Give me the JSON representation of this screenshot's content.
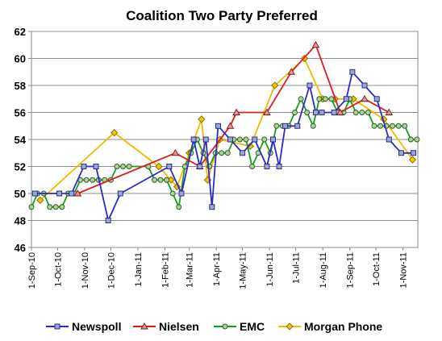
{
  "chart_data": {
    "type": "line",
    "title": "Coalition Two Party Preferred",
    "xlabel": "",
    "ylabel": "",
    "ylim": [
      46,
      62
    ],
    "yticks": [
      46,
      48,
      50,
      52,
      54,
      56,
      58,
      60,
      62
    ],
    "xlim": [
      "2010-09-01",
      "2011-11-18"
    ],
    "xticks": [
      "1-Sep-10",
      "1-Oct-10",
      "1-Nov-10",
      "1-Dec-10",
      "1-Jan-11",
      "1-Feb-11",
      "1-Mar-11",
      "1-Apr-11",
      "1-May-11",
      "1-Jun-11",
      "1-Jul-11",
      "1-Aug-11",
      "1-Sep-11",
      "1-Oct-11",
      "1-Nov-11"
    ],
    "xtick_dates": [
      "2010-09-01",
      "2010-10-01",
      "2010-11-01",
      "2010-12-01",
      "2011-01-01",
      "2011-02-01",
      "2011-03-01",
      "2011-04-01",
      "2011-05-01",
      "2011-06-01",
      "2011-07-01",
      "2011-08-01",
      "2011-09-01",
      "2011-10-01",
      "2011-11-01"
    ],
    "grid": "horizontal",
    "legend_position": "bottom",
    "series": [
      {
        "name": "Newspoll",
        "color": "#2b2bcc",
        "marker": "square",
        "x": [
          "2010-09-05",
          "2010-10-03",
          "2010-10-17",
          "2010-10-31",
          "2010-11-14",
          "2010-11-28",
          "2010-12-12",
          "2011-02-06",
          "2011-02-20",
          "2011-03-06",
          "2011-03-13",
          "2011-03-20",
          "2011-03-27",
          "2011-04-03",
          "2011-04-17",
          "2011-05-01",
          "2011-05-15",
          "2011-05-29",
          "2011-06-05",
          "2011-06-12",
          "2011-06-19",
          "2011-07-03",
          "2011-07-17",
          "2011-07-24",
          "2011-07-31",
          "2011-08-14",
          "2011-08-28",
          "2011-09-04",
          "2011-09-18",
          "2011-10-02",
          "2011-10-16",
          "2011-10-30",
          "2011-11-13"
        ],
        "y": [
          50,
          50,
          50,
          52,
          52,
          48,
          50,
          52,
          50,
          54,
          52,
          54,
          49,
          55,
          54,
          53,
          54,
          52,
          54,
          52,
          55,
          55,
          58,
          56,
          56,
          56,
          57,
          59,
          58,
          57,
          54,
          53,
          53
        ]
      },
      {
        "name": "Nielsen",
        "color": "#e01b1b",
        "marker": "triangle",
        "x": [
          "2010-10-24",
          "2011-02-13",
          "2011-03-13",
          "2011-04-17",
          "2011-04-24",
          "2011-05-29",
          "2011-06-26",
          "2011-07-24",
          "2011-08-21",
          "2011-09-18",
          "2011-10-16"
        ],
        "y": [
          50,
          53,
          52,
          55,
          56,
          56,
          59,
          61,
          56,
          57,
          56
        ]
      },
      {
        "name": "EMC",
        "color": "#15a01b",
        "marker": "circle",
        "x": [
          "2010-09-01",
          "2010-09-08",
          "2010-09-15",
          "2010-09-22",
          "2010-09-29",
          "2010-10-06",
          "2010-10-13",
          "2010-10-20",
          "2010-10-27",
          "2010-11-03",
          "2010-11-10",
          "2010-11-17",
          "2010-11-24",
          "2010-12-01",
          "2010-12-08",
          "2010-12-15",
          "2010-12-22",
          "2011-01-13",
          "2011-01-20",
          "2011-01-27",
          "2011-02-03",
          "2011-02-10",
          "2011-02-17",
          "2011-02-24",
          "2011-03-03",
          "2011-03-10",
          "2011-03-17",
          "2011-03-24",
          "2011-03-31",
          "2011-04-07",
          "2011-04-14",
          "2011-04-21",
          "2011-04-28",
          "2011-05-05",
          "2011-05-12",
          "2011-05-19",
          "2011-05-26",
          "2011-06-02",
          "2011-06-09",
          "2011-06-16",
          "2011-06-23",
          "2011-06-30",
          "2011-07-07",
          "2011-07-14",
          "2011-07-21",
          "2011-07-28",
          "2011-08-04",
          "2011-08-11",
          "2011-08-18",
          "2011-08-25",
          "2011-09-01",
          "2011-09-08",
          "2011-09-15",
          "2011-09-22",
          "2011-09-29",
          "2011-10-06",
          "2011-10-13",
          "2011-10-20",
          "2011-10-27",
          "2011-11-03",
          "2011-11-10",
          "2011-11-17"
        ],
        "y": [
          49,
          50,
          50,
          49,
          49,
          49,
          50,
          50,
          51,
          51,
          51,
          51,
          51,
          51,
          52,
          52,
          52,
          52,
          51,
          51,
          51,
          50,
          49,
          52,
          53,
          54,
          53,
          52,
          53,
          53,
          53,
          54,
          54,
          54,
          52,
          53,
          54,
          53,
          55,
          55,
          55,
          56,
          57,
          56,
          55,
          57,
          57,
          57,
          56,
          56,
          57,
          56,
          56,
          56,
          55,
          55,
          55,
          55,
          55,
          55,
          54,
          54
        ]
      },
      {
        "name": "Morgan Phone",
        "color": "#f5b800",
        "marker": "diamond",
        "x": [
          "2010-09-11",
          "2010-12-05",
          "2011-01-25",
          "2011-02-08",
          "2011-02-15",
          "2011-03-01",
          "2011-03-15",
          "2011-03-22",
          "2011-04-05",
          "2011-05-10",
          "2011-06-07",
          "2011-07-11",
          "2011-08-01",
          "2011-08-15",
          "2011-09-05",
          "2011-10-10",
          "2011-11-12"
        ],
        "y": [
          49.5,
          54.5,
          52,
          51,
          50.5,
          53,
          55.5,
          51,
          54,
          53.5,
          58,
          60,
          57,
          57,
          57,
          55.5,
          52.5
        ]
      }
    ]
  }
}
